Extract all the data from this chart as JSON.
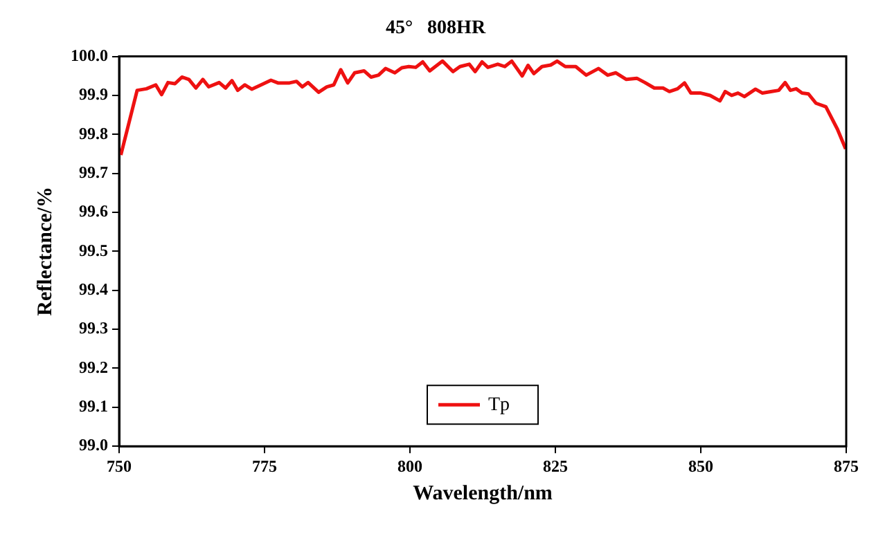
{
  "chart_data": {
    "type": "line",
    "title": "45°   808HR",
    "xlabel": "Wavelength/nm",
    "ylabel": "Reflectance/%",
    "xlim": [
      750,
      875
    ],
    "xticks": [
      750,
      775,
      800,
      825,
      850,
      875
    ],
    "ylim": [
      99.0,
      100.0
    ],
    "yticks": [
      {
        "value": 99.0,
        "label": "99.0"
      },
      99.1,
      99.2,
      99.3,
      99.4,
      99.5,
      99.6,
      99.7,
      99.8,
      99.9,
      {
        "value": 100.0,
        "label": "100.0"
      }
    ],
    "grid": false,
    "legend": "bottom",
    "marker": "none",
    "line_style": "solid",
    "series": [
      {
        "name": "Tp",
        "color": "#ee1111",
        "x": [
          750.3,
          753.1,
          754.7,
          756.3,
          757.3,
          758.4,
          759.6,
          760.8,
          762.0,
          763.2,
          764.4,
          765.4,
          767.2,
          768.3,
          769.4,
          770.4,
          771.6,
          772.8,
          774.4,
          776.1,
          777.3,
          779.3,
          780.5,
          781.5,
          782.5,
          784.3,
          785.7,
          786.9,
          788.1,
          789.3,
          790.5,
          792.1,
          793.3,
          794.6,
          795.8,
          797.4,
          798.6,
          799.8,
          801.0,
          802.2,
          803.4,
          805.6,
          807.4,
          808.6,
          810.2,
          811.2,
          812.4,
          813.4,
          815.1,
          816.3,
          817.5,
          819.3,
          820.3,
          821.3,
          822.7,
          824.2,
          825.3,
          826.7,
          828.5,
          830.3,
          832.4,
          834.0,
          835.4,
          837.2,
          839.0,
          840.4,
          842.0,
          843.5,
          844.6,
          846.0,
          847.2,
          848.3,
          850.0,
          851.6,
          853.3,
          854.2,
          855.3,
          856.4,
          857.5,
          859.4,
          860.6,
          862.2,
          863.4,
          864.5,
          865.4,
          866.4,
          867.4,
          868.5,
          869.8,
          871.5,
          873.5,
          874.9
        ],
        "values": [
          99.747,
          99.913,
          99.917,
          99.927,
          99.902,
          99.933,
          99.93,
          99.947,
          99.941,
          99.919,
          99.941,
          99.922,
          99.933,
          99.919,
          99.938,
          99.913,
          99.927,
          99.916,
          99.927,
          99.939,
          99.932,
          99.932,
          99.936,
          99.922,
          99.933,
          99.908,
          99.922,
          99.927,
          99.966,
          99.932,
          99.958,
          99.963,
          99.947,
          99.952,
          99.969,
          99.958,
          99.971,
          99.974,
          99.972,
          99.986,
          99.963,
          99.988,
          99.961,
          99.974,
          99.98,
          99.961,
          99.986,
          99.972,
          99.98,
          99.974,
          99.988,
          99.95,
          99.977,
          99.956,
          99.974,
          99.978,
          99.988,
          99.974,
          99.974,
          99.952,
          99.969,
          99.952,
          99.958,
          99.941,
          99.944,
          99.933,
          99.919,
          99.919,
          99.91,
          99.917,
          99.932,
          99.906,
          99.906,
          99.9,
          99.886,
          99.91,
          99.9,
          99.906,
          99.897,
          99.916,
          99.906,
          99.91,
          99.913,
          99.933,
          99.913,
          99.917,
          99.906,
          99.904,
          99.88,
          99.871,
          99.813,
          99.763
        ]
      }
    ]
  }
}
